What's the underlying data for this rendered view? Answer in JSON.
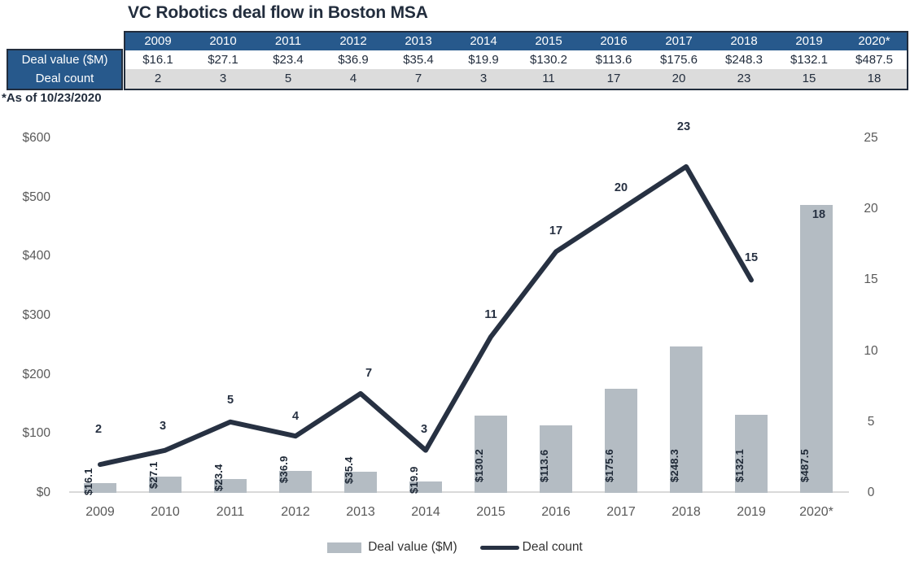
{
  "title": "VC Robotics deal flow in Boston MSA",
  "footnote": "*As of 10/23/2020",
  "table": {
    "row_labels": [
      "Deal value ($M)",
      "Deal count"
    ],
    "years": [
      "2009",
      "2010",
      "2011",
      "2012",
      "2013",
      "2014",
      "2015",
      "2016",
      "2017",
      "2018",
      "2019",
      "2020*"
    ],
    "deal_value_row": [
      "$16.1",
      "$27.1",
      "$23.4",
      "$36.9",
      "$35.4",
      "$19.9",
      "$130.2",
      "$113.6",
      "$175.6",
      "$248.3",
      "$132.1",
      "$487.5"
    ],
    "deal_count_row": [
      "2",
      "3",
      "5",
      "4",
      "7",
      "3",
      "11",
      "17",
      "20",
      "23",
      "15",
      "18"
    ]
  },
  "chart_data": {
    "type": "combo",
    "categories": [
      "2009",
      "2010",
      "2011",
      "2012",
      "2013",
      "2014",
      "2015",
      "2016",
      "2017",
      "2018",
      "2019",
      "2020*"
    ],
    "series": [
      {
        "name": "Deal value ($M)",
        "chart_type": "bar",
        "axis": "left",
        "values": [
          16.1,
          27.1,
          23.4,
          36.9,
          35.4,
          19.9,
          130.2,
          113.6,
          175.6,
          248.3,
          132.1,
          487.5
        ],
        "labels": [
          "$16.1",
          "$27.1",
          "$23.4",
          "$36.9",
          "$35.4",
          "$19.9",
          "$130.2",
          "$113.6",
          "$175.6",
          "$248.3",
          "$132.1",
          "$487.5"
        ],
        "color": "#b4bcc3"
      },
      {
        "name": "Deal count",
        "chart_type": "line",
        "axis": "right",
        "values": [
          2,
          3,
          5,
          4,
          7,
          3,
          11,
          17,
          20,
          23,
          15,
          18
        ],
        "color": "#273142",
        "connected_through_index": 10,
        "isolated_point_index": 11
      }
    ],
    "left_axis": {
      "tick_labels": [
        "$0",
        "$100",
        "$200",
        "$300",
        "$400",
        "$500",
        "$600"
      ],
      "tick_values": [
        0,
        100,
        200,
        300,
        400,
        500,
        600
      ],
      "range": [
        0,
        600
      ]
    },
    "right_axis": {
      "tick_labels": [
        "0",
        "5",
        "10",
        "15",
        "20",
        "25"
      ],
      "tick_values": [
        0,
        5,
        10,
        15,
        20,
        25
      ],
      "range": [
        0,
        25
      ]
    },
    "legend": [
      {
        "label": "Deal value ($M)",
        "swatch": "bar"
      },
      {
        "label": "Deal count",
        "swatch": "line"
      }
    ],
    "grid": false
  },
  "colors": {
    "header_blue": "#27598c",
    "navy_text": "#222d3d",
    "line_navy": "#273142",
    "bar_gray": "#b4bcc3",
    "count_row_gray": "#dcdcdc",
    "axis_label_gray": "#595959",
    "baseline_gray": "#d9d9d9"
  }
}
